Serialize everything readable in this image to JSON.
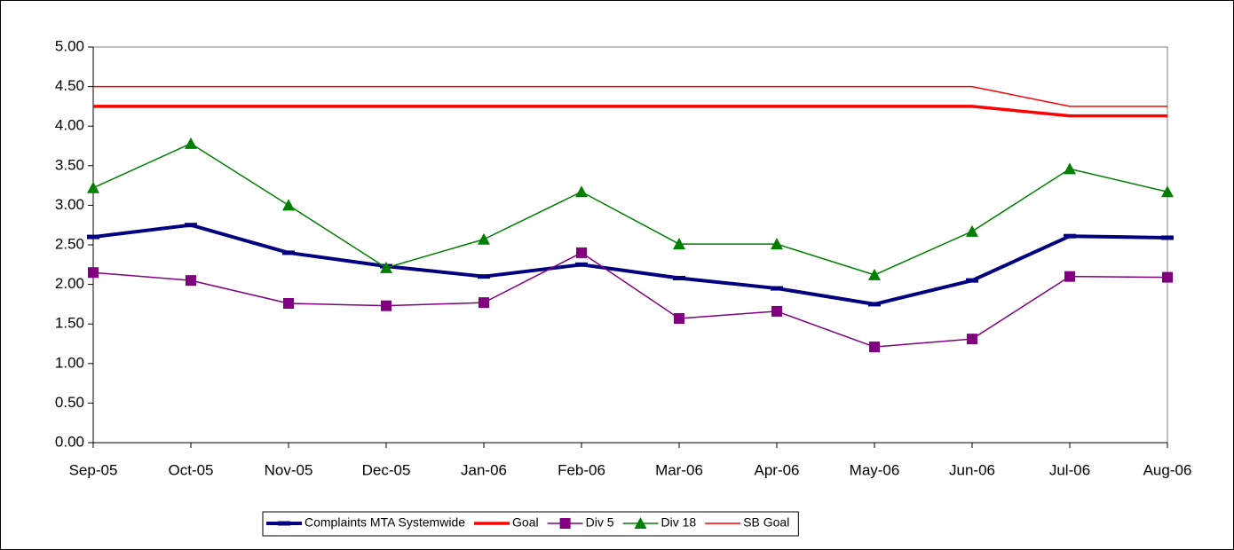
{
  "chart_data": {
    "type": "line",
    "categories": [
      "Sep-05",
      "Oct-05",
      "Nov-05",
      "Dec-05",
      "Jan-06",
      "Feb-06",
      "Mar-06",
      "Apr-06",
      "May-06",
      "Jun-06",
      "Jul-06",
      "Aug-06"
    ],
    "series": [
      {
        "name": "Complaints MTA Systemwide",
        "color": "#000080",
        "width": 4,
        "marker": "dash",
        "values": [
          2.6,
          2.75,
          2.4,
          2.23,
          2.1,
          2.25,
          2.08,
          1.95,
          1.75,
          2.05,
          2.61,
          2.59
        ]
      },
      {
        "name": "Goal",
        "color": "#ff0000",
        "width": 3.5,
        "marker": "none",
        "values": [
          4.25,
          4.25,
          4.25,
          4.25,
          4.25,
          4.25,
          4.25,
          4.25,
          4.25,
          4.25,
          4.13,
          4.13
        ]
      },
      {
        "name": "Div 5",
        "color": "#800080",
        "width": 1.5,
        "marker": "square",
        "values": [
          2.15,
          2.05,
          1.76,
          1.73,
          1.77,
          2.4,
          1.57,
          1.66,
          1.21,
          1.31,
          2.1,
          2.09
        ]
      },
      {
        "name": "Div 18",
        "color": "#008000",
        "width": 1.5,
        "marker": "triangle",
        "values": [
          3.22,
          3.78,
          3.0,
          2.21,
          2.57,
          3.17,
          2.51,
          2.51,
          2.12,
          2.67,
          3.46,
          3.17
        ]
      },
      {
        "name": "SB Goal",
        "color": "#ff0000",
        "width": 1.5,
        "marker": "none",
        "values": [
          4.5,
          4.5,
          4.5,
          4.5,
          4.5,
          4.5,
          4.5,
          4.5,
          4.5,
          4.5,
          4.25,
          4.25
        ]
      }
    ],
    "ylim": [
      0,
      5
    ],
    "yticks": [
      {
        "value": 0,
        "label": "0.00"
      },
      {
        "value": 0.5,
        "label": "0.50"
      },
      {
        "value": 1,
        "label": "1.00"
      },
      {
        "value": 1.5,
        "label": "1.50"
      },
      {
        "value": 2,
        "label": "2.00"
      },
      {
        "value": 2.5,
        "label": "2.50"
      },
      {
        "value": 3,
        "label": "3.00"
      },
      {
        "value": 3.5,
        "label": "3.50"
      },
      {
        "value": 4,
        "label": "4.00"
      },
      {
        "value": 4.5,
        "label": "4.50"
      },
      {
        "value": 5,
        "label": "5.00"
      }
    ],
    "grid": false,
    "legend": "bottom"
  }
}
